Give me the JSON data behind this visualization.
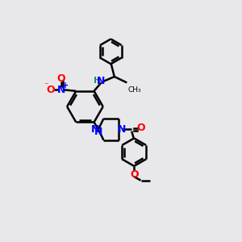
{
  "background_color": "#e8e8ea",
  "bond_color": "#000000",
  "bond_width": 1.8,
  "figsize": [
    3.0,
    3.0
  ],
  "dpi": 100,
  "N_color": "#0000ff",
  "O_color": "#ff0000",
  "H_color": "#2e8b57",
  "xlim": [
    0,
    10
  ],
  "ylim": [
    0,
    10
  ]
}
